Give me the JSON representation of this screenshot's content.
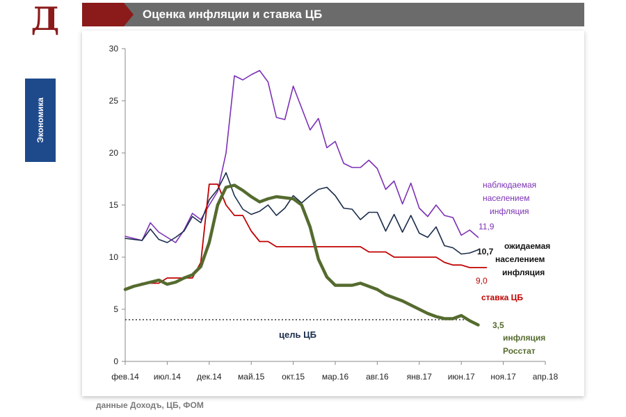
{
  "header": {
    "logo": "Д",
    "title": "Оценка инфляции и ставка ЦБ"
  },
  "sidebar": {
    "label": "Экономика"
  },
  "source": "данные Доходъ, ЦБ, ФОМ",
  "colors": {
    "header_bg": "#6b6b6b",
    "accent_red": "#8b1a1a",
    "side_tab": "#1e4a8c"
  },
  "chart_data": {
    "type": "line",
    "title": "",
    "xlabel": "",
    "ylabel": "",
    "ylim": [
      0,
      30
    ],
    "yticks": [
      0,
      5,
      10,
      15,
      20,
      25,
      30
    ],
    "xticks": [
      "фев.14",
      "июл.14",
      "дек.14",
      "май.15",
      "окт.15",
      "мар.16",
      "авг.16",
      "янв.17",
      "июн.17",
      "ноя.17",
      "апр.18"
    ],
    "x_range": [
      "2014-02",
      "2018-04"
    ],
    "grid": false,
    "legend": "inline labels",
    "series": [
      {
        "key": "observed",
        "label_lines": [
          "наблюдаемая",
          "населением",
          "инфляция"
        ],
        "end_label": "11,9",
        "color": "#7b30b5",
        "width": 1.6,
        "values": [
          [
            "2014-02",
            12.0
          ],
          [
            "2014-03",
            11.8
          ],
          [
            "2014-04",
            11.6
          ],
          [
            "2014-05",
            13.3
          ],
          [
            "2014-06",
            12.4
          ],
          [
            "2014-07",
            11.9
          ],
          [
            "2014-08",
            11.4
          ],
          [
            "2014-09",
            12.6
          ],
          [
            "2014-10",
            14.2
          ],
          [
            "2014-11",
            13.6
          ],
          [
            "2014-12",
            15.0
          ],
          [
            "2015-01",
            16.3
          ],
          [
            "2015-02",
            20.0
          ],
          [
            "2015-03",
            27.4
          ],
          [
            "2015-04",
            27.0
          ],
          [
            "2015-05",
            27.5
          ],
          [
            "2015-06",
            27.9
          ],
          [
            "2015-07",
            26.8
          ],
          [
            "2015-08",
            23.4
          ],
          [
            "2015-09",
            23.2
          ],
          [
            "2015-10",
            26.4
          ],
          [
            "2015-11",
            24.3
          ],
          [
            "2015-12",
            22.2
          ],
          [
            "2016-01",
            23.3
          ],
          [
            "2016-02",
            20.5
          ],
          [
            "2016-03",
            21.1
          ],
          [
            "2016-04",
            19.0
          ],
          [
            "2016-05",
            18.6
          ],
          [
            "2016-06",
            18.6
          ],
          [
            "2016-07",
            19.3
          ],
          [
            "2016-08",
            18.5
          ],
          [
            "2016-09",
            16.5
          ],
          [
            "2016-10",
            17.3
          ],
          [
            "2016-11",
            15.1
          ],
          [
            "2016-12",
            17.1
          ],
          [
            "2017-01",
            14.7
          ],
          [
            "2017-02",
            13.9
          ],
          [
            "2017-03",
            15.0
          ],
          [
            "2017-04",
            14.0
          ],
          [
            "2017-05",
            13.8
          ],
          [
            "2017-06",
            12.1
          ],
          [
            "2017-07",
            12.6
          ],
          [
            "2017-08",
            11.9
          ]
        ]
      },
      {
        "key": "expected",
        "label_lines": [
          "ожидаемая",
          "населением",
          "инфляция"
        ],
        "end_label": "10,7",
        "color": "#1a2c4a",
        "width": 1.6,
        "values": [
          [
            "2014-02",
            11.8
          ],
          [
            "2014-03",
            11.7
          ],
          [
            "2014-04",
            11.6
          ],
          [
            "2014-05",
            12.7
          ],
          [
            "2014-06",
            11.7
          ],
          [
            "2014-07",
            11.4
          ],
          [
            "2014-08",
            11.9
          ],
          [
            "2014-09",
            12.5
          ],
          [
            "2014-10",
            13.9
          ],
          [
            "2014-11",
            13.3
          ],
          [
            "2014-12",
            15.5
          ],
          [
            "2015-01",
            16.5
          ],
          [
            "2015-02",
            18.1
          ],
          [
            "2015-03",
            15.9
          ],
          [
            "2015-04",
            14.6
          ],
          [
            "2015-05",
            14.1
          ],
          [
            "2015-06",
            14.4
          ],
          [
            "2015-07",
            15.0
          ],
          [
            "2015-08",
            14.0
          ],
          [
            "2015-09",
            14.7
          ],
          [
            "2015-10",
            15.9
          ],
          [
            "2015-11",
            15.2
          ],
          [
            "2015-12",
            15.9
          ],
          [
            "2016-01",
            16.5
          ],
          [
            "2016-02",
            16.7
          ],
          [
            "2016-03",
            15.9
          ],
          [
            "2016-04",
            14.7
          ],
          [
            "2016-05",
            14.6
          ],
          [
            "2016-06",
            13.6
          ],
          [
            "2016-07",
            14.3
          ],
          [
            "2016-08",
            14.3
          ],
          [
            "2016-09",
            12.5
          ],
          [
            "2016-10",
            14.1
          ],
          [
            "2016-11",
            12.4
          ],
          [
            "2016-12",
            14.0
          ],
          [
            "2017-01",
            12.3
          ],
          [
            "2017-02",
            11.9
          ],
          [
            "2017-03",
            12.9
          ],
          [
            "2017-04",
            11.1
          ],
          [
            "2017-05",
            10.9
          ],
          [
            "2017-06",
            10.3
          ],
          [
            "2017-07",
            10.4
          ],
          [
            "2017-08",
            10.7
          ]
        ]
      },
      {
        "key": "key_rate",
        "label_lines": [
          "ставка ЦБ"
        ],
        "end_label": "9,0",
        "color": "#c00000",
        "width": 1.8,
        "values": [
          [
            "2014-02",
            7.0
          ],
          [
            "2014-03",
            7.2
          ],
          [
            "2014-04",
            7.5
          ],
          [
            "2014-05",
            7.5
          ],
          [
            "2014-06",
            7.5
          ],
          [
            "2014-07",
            8.0
          ],
          [
            "2014-08",
            8.0
          ],
          [
            "2014-09",
            8.0
          ],
          [
            "2014-10",
            8.0
          ],
          [
            "2014-11",
            9.5
          ],
          [
            "2014-12",
            17.0
          ],
          [
            "2015-01",
            17.0
          ],
          [
            "2015-02",
            15.0
          ],
          [
            "2015-03",
            14.0
          ],
          [
            "2015-04",
            14.0
          ],
          [
            "2015-05",
            12.5
          ],
          [
            "2015-06",
            11.5
          ],
          [
            "2015-07",
            11.5
          ],
          [
            "2015-08",
            11.0
          ],
          [
            "2015-09",
            11.0
          ],
          [
            "2015-10",
            11.0
          ],
          [
            "2015-11",
            11.0
          ],
          [
            "2015-12",
            11.0
          ],
          [
            "2016-01",
            11.0
          ],
          [
            "2016-02",
            11.0
          ],
          [
            "2016-03",
            11.0
          ],
          [
            "2016-04",
            11.0
          ],
          [
            "2016-05",
            11.0
          ],
          [
            "2016-06",
            11.0
          ],
          [
            "2016-07",
            10.5
          ],
          [
            "2016-08",
            10.5
          ],
          [
            "2016-09",
            10.5
          ],
          [
            "2016-10",
            10.0
          ],
          [
            "2016-11",
            10.0
          ],
          [
            "2016-12",
            10.0
          ],
          [
            "2017-01",
            10.0
          ],
          [
            "2017-02",
            10.0
          ],
          [
            "2017-03",
            10.0
          ],
          [
            "2017-04",
            9.5
          ],
          [
            "2017-05",
            9.25
          ],
          [
            "2017-06",
            9.25
          ],
          [
            "2017-07",
            9.0
          ],
          [
            "2017-08",
            9.0
          ],
          [
            "2017-09",
            9.0
          ]
        ]
      },
      {
        "key": "rosstat",
        "label_lines": [
          "инфляция",
          "Росстат"
        ],
        "end_label": "3,5",
        "color": "#556b2f",
        "width": 4.5,
        "values": [
          [
            "2014-02",
            6.9
          ],
          [
            "2014-03",
            7.2
          ],
          [
            "2014-04",
            7.4
          ],
          [
            "2014-05",
            7.6
          ],
          [
            "2014-06",
            7.8
          ],
          [
            "2014-07",
            7.4
          ],
          [
            "2014-08",
            7.6
          ],
          [
            "2014-09",
            8.0
          ],
          [
            "2014-10",
            8.3
          ],
          [
            "2014-11",
            9.1
          ],
          [
            "2014-12",
            11.4
          ],
          [
            "2015-01",
            15.0
          ],
          [
            "2015-02",
            16.7
          ],
          [
            "2015-03",
            16.9
          ],
          [
            "2015-04",
            16.4
          ],
          [
            "2015-05",
            15.8
          ],
          [
            "2015-06",
            15.3
          ],
          [
            "2015-07",
            15.6
          ],
          [
            "2015-08",
            15.8
          ],
          [
            "2015-09",
            15.7
          ],
          [
            "2015-10",
            15.6
          ],
          [
            "2015-11",
            15.0
          ],
          [
            "2015-12",
            12.9
          ],
          [
            "2016-01",
            9.8
          ],
          [
            "2016-02",
            8.1
          ],
          [
            "2016-03",
            7.3
          ],
          [
            "2016-04",
            7.3
          ],
          [
            "2016-05",
            7.3
          ],
          [
            "2016-06",
            7.5
          ],
          [
            "2016-07",
            7.2
          ],
          [
            "2016-08",
            6.9
          ],
          [
            "2016-09",
            6.4
          ],
          [
            "2016-10",
            6.1
          ],
          [
            "2016-11",
            5.8
          ],
          [
            "2016-12",
            5.4
          ],
          [
            "2017-01",
            5.0
          ],
          [
            "2017-02",
            4.6
          ],
          [
            "2017-03",
            4.3
          ],
          [
            "2017-04",
            4.1
          ],
          [
            "2017-05",
            4.1
          ],
          [
            "2017-06",
            4.4
          ],
          [
            "2017-07",
            3.9
          ],
          [
            "2017-08",
            3.5
          ]
        ]
      }
    ],
    "reference_line": {
      "label": "цель ЦБ",
      "value": 4,
      "x_range": [
        "2014-02",
        "2017-07"
      ],
      "color": "#333333"
    }
  }
}
